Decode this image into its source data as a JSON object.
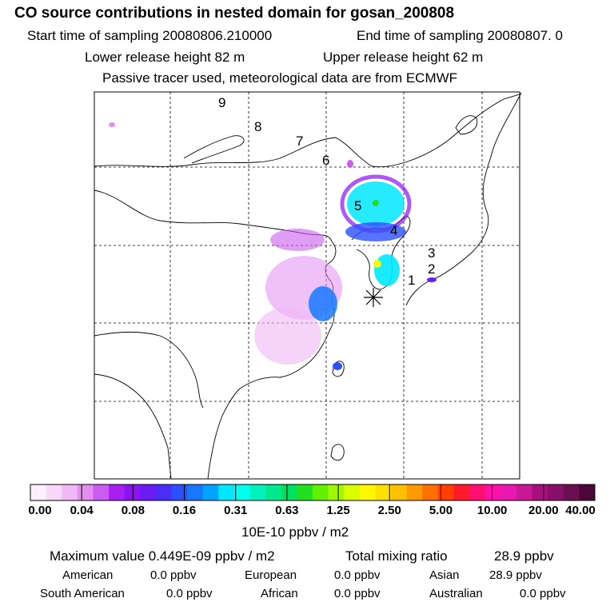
{
  "header": {
    "title": "CO  source contributions in nested domain for gosan_200808",
    "start_label": "Start time of sampling 20080806.210000",
    "end_label": "End time of sampling 20080807.     0",
    "lower_label": "Lower release height   82 m",
    "upper_label": "Upper release height   62 m",
    "tracer_label": "Passive tracer used, meteorological data are from ECMWF"
  },
  "map": {
    "number_labels": [
      "1",
      "2",
      "3",
      "4",
      "5",
      "6",
      "7",
      "8",
      "9"
    ],
    "station_marker": "asterisk-icon"
  },
  "colorbar": {
    "tick_labels": [
      "0.00",
      "0.04",
      "0.08",
      "0.16",
      "0.31",
      "0.63",
      "1.25",
      "2.50",
      "5.00",
      "10.00",
      "20.00",
      "40.00"
    ],
    "colors": [
      "#fdeffd",
      "#f8d8f8",
      "#f0b8f5",
      "#e48ef2",
      "#cc5cf0",
      "#a820f0",
      "#8a12f5",
      "#6a1cf5",
      "#4a2ef8",
      "#2a50ff",
      "#1878ff",
      "#00a4ff",
      "#00e8ff",
      "#00ffee",
      "#00f0c0",
      "#00e890",
      "#00e060",
      "#20e020",
      "#60f000",
      "#a0f800",
      "#d8ff00",
      "#fff800",
      "#ffe000",
      "#ffc000",
      "#ff9a00",
      "#ff7000",
      "#ff4000",
      "#ff1a2a",
      "#ff1070",
      "#ff10a8",
      "#e818b0",
      "#c81898",
      "#a81080",
      "#881068",
      "#681050",
      "#4a0838"
    ],
    "units": "10E-10 ppbv / m2"
  },
  "stats": {
    "max_label": "Maximum value  0.449E-09 ppbv / m2",
    "total_label": "Total mixing ratio",
    "total_value": "28.9 ppbv",
    "regions": [
      {
        "name": "American",
        "value": "0.0 ppbv"
      },
      {
        "name": "European",
        "value": "0.0 ppbv"
      },
      {
        "name": "Asian",
        "value": "28.9 ppbv"
      },
      {
        "name": "South American",
        "value": "0.0 ppbv"
      },
      {
        "name": "African",
        "value": "0.0 ppbv"
      },
      {
        "name": "Australian",
        "value": "0.0 ppbv"
      }
    ]
  }
}
